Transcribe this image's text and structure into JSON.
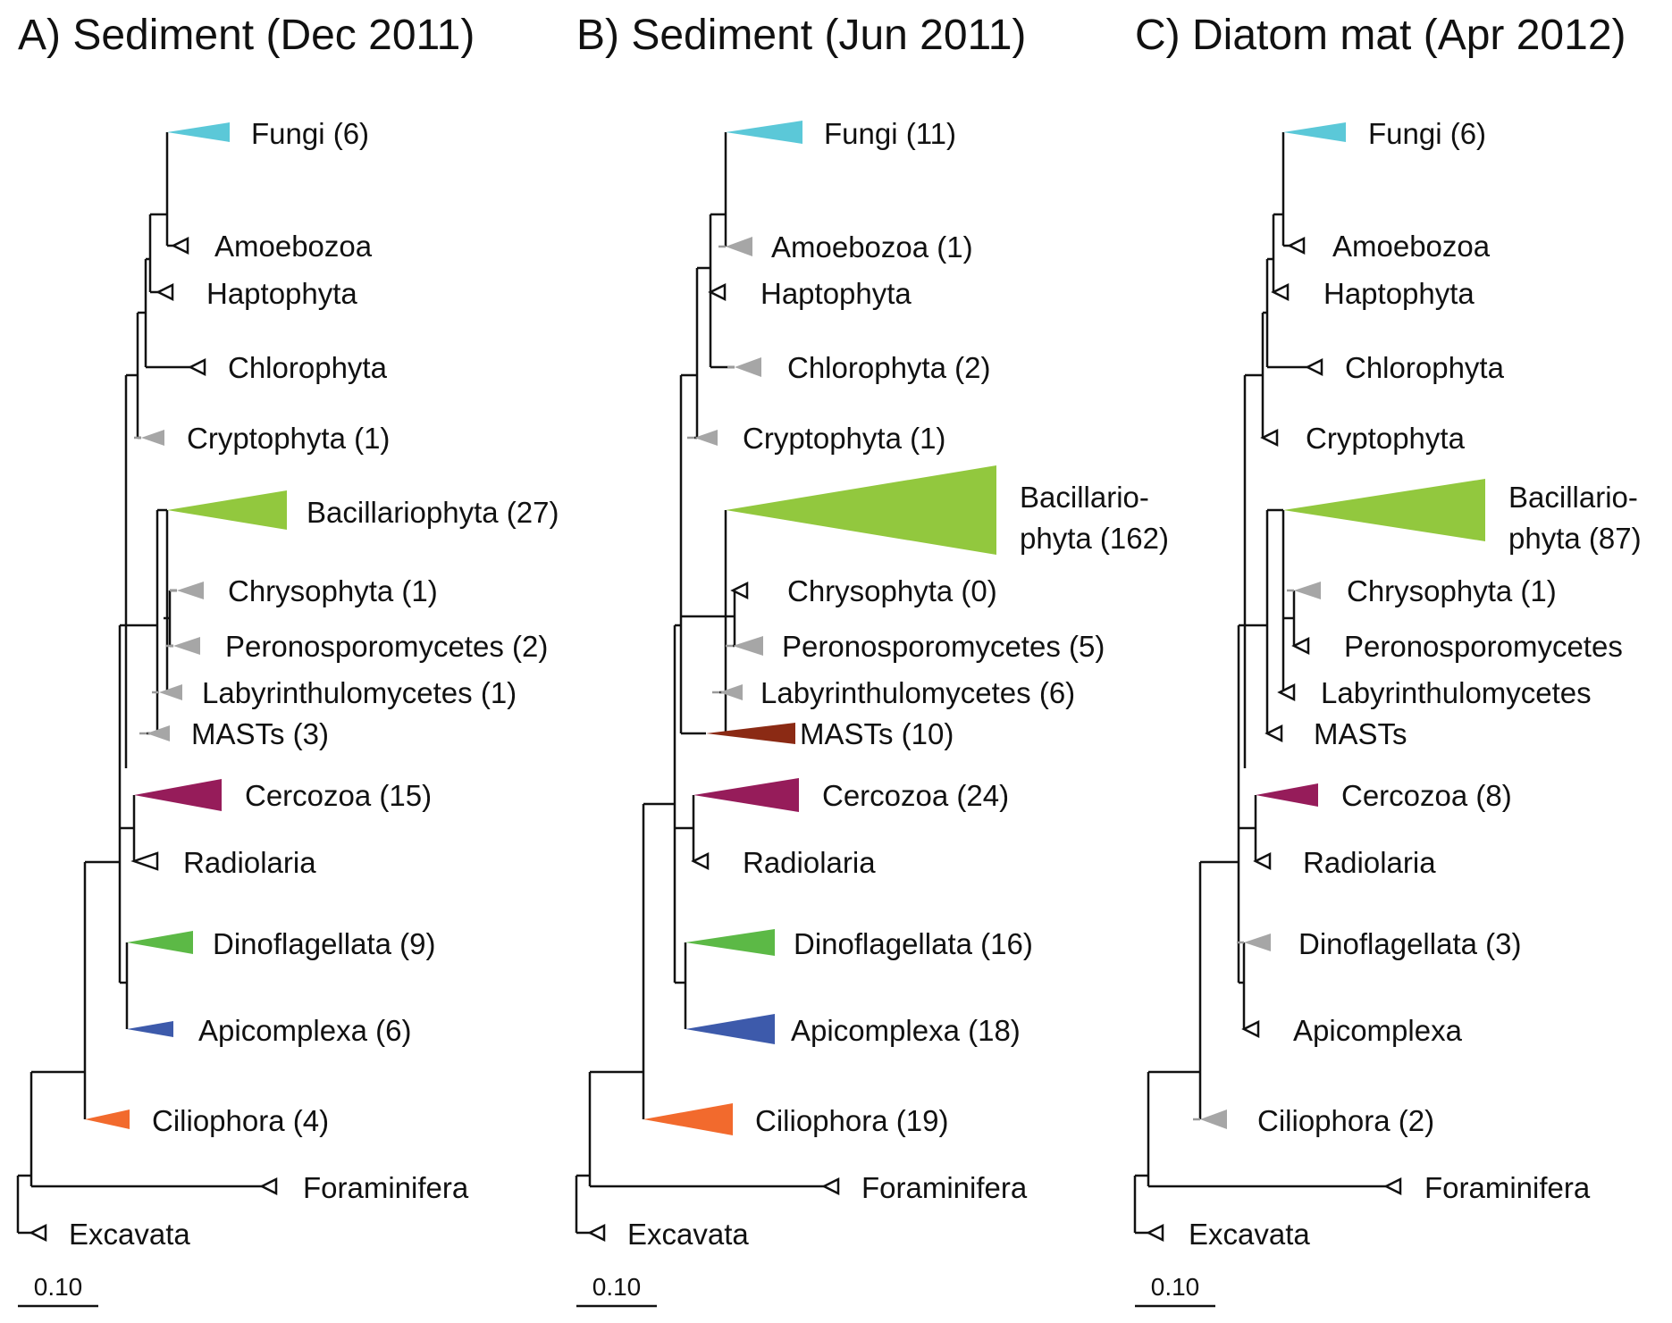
{
  "panels": [
    {
      "title": "A) Sediment (Dec 2011)",
      "scale_label": "0.10",
      "clades": [
        {
          "label": "Fungi (6)",
          "color": "#5bc8d8",
          "style": "filled"
        },
        {
          "label": "Amoebozoa",
          "color": "#111111",
          "style": "open"
        },
        {
          "label": "Haptophyta",
          "color": "#111111",
          "style": "open"
        },
        {
          "label": "Chlorophyta",
          "color": "#111111",
          "style": "open"
        },
        {
          "label": "Cryptophyta (1)",
          "color": "#a6a6a6",
          "style": "filled"
        },
        {
          "label": "Bacillariophyta (27)",
          "color": "#92c83e",
          "style": "filled"
        },
        {
          "label": "Chrysophyta (1)",
          "color": "#a6a6a6",
          "style": "filled"
        },
        {
          "label": "Peronosporomycetes (2)",
          "color": "#a6a6a6",
          "style": "filled"
        },
        {
          "label": "Labyrinthulomycetes (1)",
          "color": "#a6a6a6",
          "style": "filled"
        },
        {
          "label": "MASTs (3)",
          "color": "#a6a6a6",
          "style": "filled"
        },
        {
          "label": "Cercozoa (15)",
          "color": "#961c5a",
          "style": "filled"
        },
        {
          "label": "Radiolaria",
          "color": "#111111",
          "style": "open"
        },
        {
          "label": "Dinoflagellata (9)",
          "color": "#5cb946",
          "style": "filled"
        },
        {
          "label": "Apicomplexa (6)",
          "color": "#3d5aab",
          "style": "filled"
        },
        {
          "label": "Ciliophora (4)",
          "color": "#f26a2d",
          "style": "filled"
        },
        {
          "label": "Foraminifera",
          "color": "#111111",
          "style": "open"
        },
        {
          "label": "Excavata",
          "color": "#111111",
          "style": "open"
        }
      ]
    },
    {
      "title": "B) Sediment (Jun 2011)",
      "scale_label": "0.10",
      "clades": [
        {
          "label": "Fungi (11)",
          "color": "#5bc8d8",
          "style": "filled"
        },
        {
          "label": "Amoebozoa (1)",
          "color": "#a6a6a6",
          "style": "filled"
        },
        {
          "label": "Haptophyta",
          "color": "#111111",
          "style": "open"
        },
        {
          "label": "Chlorophyta (2)",
          "color": "#a6a6a6",
          "style": "filled"
        },
        {
          "label": "Cryptophyta (1)",
          "color": "#a6a6a6",
          "style": "filled"
        },
        {
          "label": [
            "Bacillario-",
            "phyta (162)"
          ],
          "color": "#92c83e",
          "style": "filled"
        },
        {
          "label": "Chrysophyta (0)",
          "color": "#111111",
          "style": "open"
        },
        {
          "label": "Peronosporomycetes (5)",
          "color": "#a6a6a6",
          "style": "filled"
        },
        {
          "label": "Labyrinthulomycetes (6)",
          "color": "#a6a6a6",
          "style": "filled"
        },
        {
          "label": "MASTs (10)",
          "color": "#8b2a14",
          "style": "filled"
        },
        {
          "label": "Cercozoa (24)",
          "color": "#961c5a",
          "style": "filled"
        },
        {
          "label": "Radiolaria",
          "color": "#111111",
          "style": "open"
        },
        {
          "label": "Dinoflagellata (16)",
          "color": "#5cb946",
          "style": "filled"
        },
        {
          "label": "Apicomplexa (18)",
          "color": "#3d5aab",
          "style": "filled"
        },
        {
          "label": "Ciliophora (19)",
          "color": "#f26a2d",
          "style": "filled"
        },
        {
          "label": "Foraminifera",
          "color": "#111111",
          "style": "open"
        },
        {
          "label": "Excavata",
          "color": "#111111",
          "style": "open"
        }
      ]
    },
    {
      "title": "C) Diatom mat (Apr 2012)",
      "scale_label": "0.10",
      "clades": [
        {
          "label": "Fungi (6)",
          "color": "#5bc8d8",
          "style": "filled"
        },
        {
          "label": "Amoebozoa",
          "color": "#111111",
          "style": "open"
        },
        {
          "label": "Haptophyta",
          "color": "#111111",
          "style": "open"
        },
        {
          "label": "Chlorophyta",
          "color": "#111111",
          "style": "open"
        },
        {
          "label": "Cryptophyta",
          "color": "#111111",
          "style": "open"
        },
        {
          "label": [
            "Bacillario-",
            "phyta (87)"
          ],
          "color": "#92c83e",
          "style": "filled"
        },
        {
          "label": "Chrysophyta (1)",
          "color": "#a6a6a6",
          "style": "filled"
        },
        {
          "label": "Peronosporomycetes",
          "color": "#111111",
          "style": "open"
        },
        {
          "label": "Labyrinthulomycetes",
          "color": "#111111",
          "style": "open"
        },
        {
          "label": "MASTs",
          "color": "#111111",
          "style": "open"
        },
        {
          "label": "Cercozoa (8)",
          "color": "#961c5a",
          "style": "filled"
        },
        {
          "label": "Radiolaria",
          "color": "#111111",
          "style": "open"
        },
        {
          "label": "Dinoflagellata (3)",
          "color": "#a6a6a6",
          "style": "filled"
        },
        {
          "label": "Apicomplexa",
          "color": "#111111",
          "style": "open"
        },
        {
          "label": "Ciliophora (2)",
          "color": "#a6a6a6",
          "style": "filled"
        },
        {
          "label": "Foraminifera",
          "color": "#111111",
          "style": "open"
        },
        {
          "label": "Excavata",
          "color": "#111111",
          "style": "open"
        }
      ]
    }
  ]
}
